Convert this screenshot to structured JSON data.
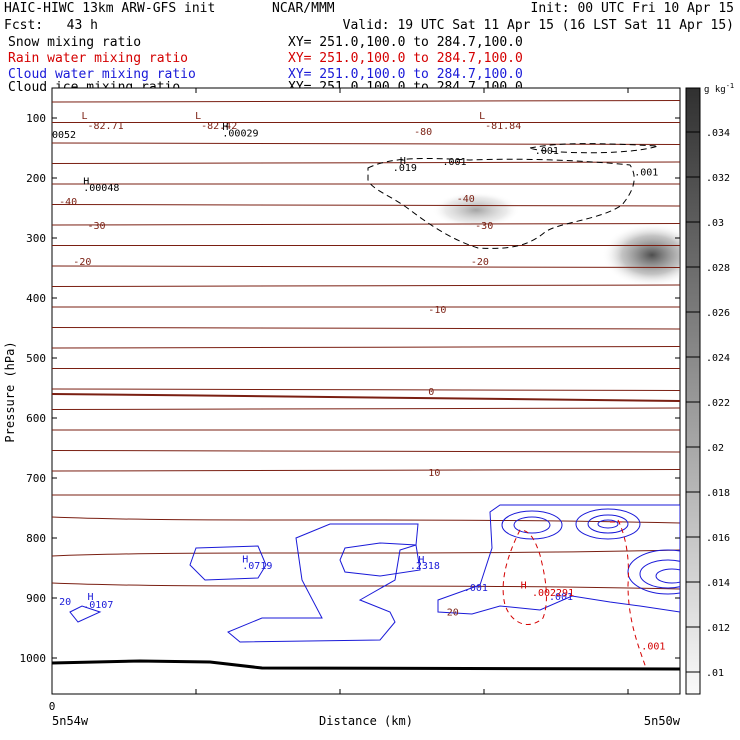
{
  "header": {
    "model_title": "HAIC-HIWC 13km ARW-GFS init",
    "center": "NCAR/MMM",
    "init": "Init: 00 UTC Fri 10 Apr 15",
    "fcst": "Fcst:   43 h",
    "valid": "Valid: 19 UTC Sat 11 Apr 15 (16 LST Sat 11 Apr 15)"
  },
  "fields": [
    {
      "name": "Snow mixing ratio",
      "xy": "XY= 251.0,100.0 to 284.7,100.0",
      "color": "#000000"
    },
    {
      "name": "Rain water mixing ratio",
      "xy": "XY= 251.0,100.0 to 284.7,100.0",
      "color": "#d40000"
    },
    {
      "name": "Cloud water mixing ratio",
      "xy": "XY= 251.0,100.0 to 284.7,100.0",
      "color": "#1a1ad8"
    },
    {
      "name": "Cloud ice mixing ratio",
      "xy": "XY= 251.0,100.0 to 284.7,100.0",
      "color": "#000000"
    }
  ],
  "chart_data": {
    "type": "cross-section contour",
    "ylabel": "Pressure (hPa)",
    "xlabel": "Distance (km)",
    "x_start_label": "5n54w",
    "x_end_label": "5n50w",
    "x_tick_zero": "0",
    "y_ticks": [
      100,
      200,
      300,
      400,
      500,
      600,
      700,
      800,
      900,
      1000
    ],
    "colorbar": {
      "unit": "g kg",
      "unit_sup": "-1",
      "ticks": [
        ".034",
        ".032",
        ".03",
        ".028",
        ".026",
        ".024",
        ".022",
        ".02",
        ".018",
        ".016",
        ".014",
        ".012",
        ".01"
      ]
    },
    "temperature_labels": [
      {
        "text": "-82.71",
        "x": 0.25,
        "p": 118,
        "marker": "L"
      },
      {
        "text": "-82.42",
        "x": 1.05,
        "p": 118,
        "marker": "L"
      },
      {
        "text": "-81.84",
        "x": 3.05,
        "p": 118,
        "marker": "L"
      },
      {
        "text": "-80",
        "x": 2.55,
        "p": 128
      },
      {
        "text": "-40",
        "x": 0.05,
        "p": 245
      },
      {
        "text": "-40",
        "x": 2.85,
        "p": 240
      },
      {
        "text": "-30",
        "x": 0.25,
        "p": 285
      },
      {
        "text": "-30",
        "x": 2.98,
        "p": 285
      },
      {
        "text": "-20",
        "x": 0.15,
        "p": 345
      },
      {
        "text": "-20",
        "x": 2.95,
        "p": 345
      },
      {
        "text": "-10",
        "x": 2.65,
        "p": 425
      },
      {
        "text": "0",
        "x": 2.65,
        "p": 562
      },
      {
        "text": "10",
        "x": 2.65,
        "p": 697
      },
      {
        "text": "20",
        "x": 2.78,
        "p": 929
      }
    ],
    "snow_labels": [
      {
        "text": "H",
        "x": 0.22,
        "p": 211
      },
      {
        "text": ".00048",
        "x": 0.22,
        "p": 222
      },
      {
        "text": "H",
        "x": 1.2,
        "p": 120
      },
      {
        "text": ".00029",
        "x": 1.2,
        "p": 131
      },
      {
        "text": "H",
        "x": 2.45,
        "p": 177
      },
      {
        "text": ".019",
        "x": 2.4,
        "p": 188
      },
      {
        "text": ".001",
        "x": 2.75,
        "p": 178
      },
      {
        "text": ".001",
        "x": 3.4,
        "p": 160
      },
      {
        "text": ".001",
        "x": 4.1,
        "p": 196
      },
      {
        "text": "0052",
        "x": 0.0,
        "p": 133
      }
    ],
    "cloud_water_labels": [
      {
        "text": "H",
        "x": 1.34,
        "p": 841
      },
      {
        "text": ".0719",
        "x": 1.34,
        "p": 852
      },
      {
        "text": "H",
        "x": 2.58,
        "p": 842
      },
      {
        "text": ".2318",
        "x": 2.52,
        "p": 852
      },
      {
        "text": "H",
        "x": 0.25,
        "p": 903
      },
      {
        "text": ".0107",
        "x": 0.22,
        "p": 917
      },
      {
        "text": "20",
        "x": 0.05,
        "p": 912
      },
      {
        "text": ".001",
        "x": 2.9,
        "p": 888
      },
      {
        "text": ".001",
        "x": 3.5,
        "p": 903
      }
    ],
    "rain_labels": [
      {
        "text": "H",
        "x": 3.3,
        "p": 884
      },
      {
        "text": ".002291",
        "x": 3.38,
        "p": 897
      },
      {
        "text": ".001",
        "x": 4.15,
        "p": 986
      }
    ]
  }
}
